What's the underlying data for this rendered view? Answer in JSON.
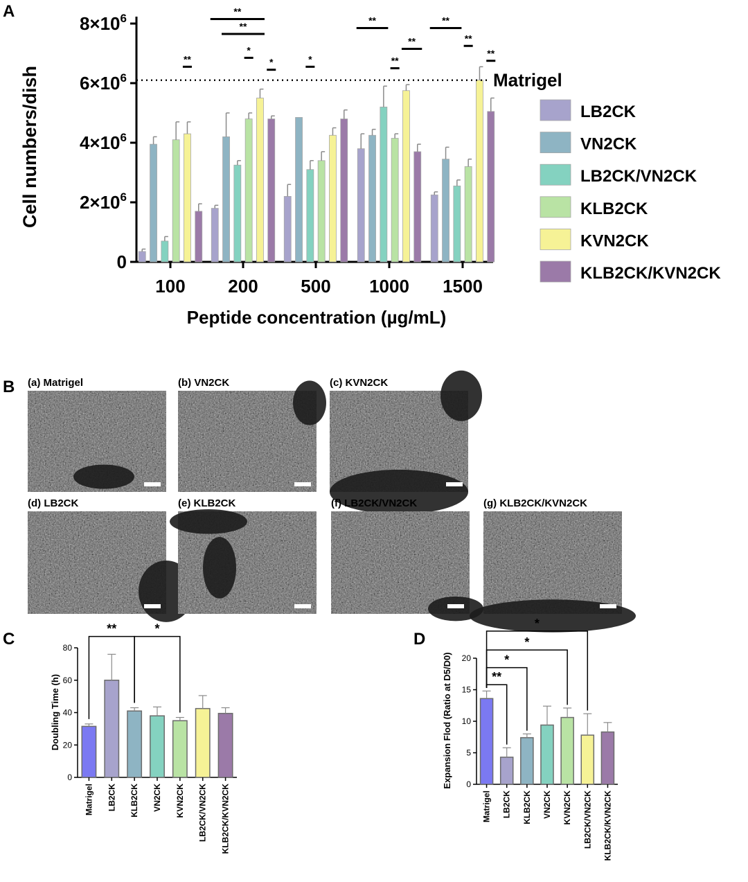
{
  "panels": {
    "a_letter": "A",
    "b_letter": "B",
    "c_letter": "C",
    "d_letter": "D"
  },
  "colors": {
    "LB2CK": "#a7a3cc",
    "VN2CK": "#8eb4c3",
    "LB2CK/VN2CK": "#84d2c0",
    "KLB2CK": "#b9e3a4",
    "KVN2CK": "#f6f296",
    "KLB2CK/KVN2CK": "#9b7aa8",
    "Matrigel": "#7b79f2"
  },
  "chart_data": [
    {
      "id": "A",
      "type": "bar",
      "title": "",
      "xlabel": "Peptide concentration (µg/mL)",
      "ylabel": "Cell numbers/dish",
      "ylim": [
        0,
        8000000
      ],
      "yticks": [
        {
          "value": 0,
          "mant": "0",
          "exp": ""
        },
        {
          "value": 2000000,
          "mant": "2×10",
          "exp": "6"
        },
        {
          "value": 4000000,
          "mant": "4×10",
          "exp": "6"
        },
        {
          "value": 6000000,
          "mant": "6×10",
          "exp": "6"
        },
        {
          "value": 8000000,
          "mant": "8×10",
          "exp": "6"
        }
      ],
      "categories": [
        "100",
        "200",
        "500",
        "1000",
        "1500"
      ],
      "series": [
        {
          "name": "LB2CK",
          "values": [
            350000,
            1800000,
            2200000,
            3800000,
            2250000
          ],
          "errors": [
            80000,
            100000,
            400000,
            500000,
            100000
          ]
        },
        {
          "name": "VN2CK",
          "values": [
            3950000,
            4200000,
            4850000,
            4250000,
            3450000
          ],
          "errors": [
            250000,
            800000,
            0,
            200000,
            400000
          ]
        },
        {
          "name": "LB2CK/VN2CK",
          "values": [
            700000,
            3250000,
            3100000,
            5200000,
            2550000
          ],
          "errors": [
            150000,
            150000,
            300000,
            700000,
            200000
          ]
        },
        {
          "name": "KLB2CK",
          "values": [
            4100000,
            4800000,
            3400000,
            4150000,
            3200000
          ],
          "errors": [
            600000,
            200000,
            300000,
            150000,
            250000
          ]
        },
        {
          "name": "KVN2CK",
          "values": [
            4300000,
            5500000,
            4250000,
            5750000,
            6100000
          ],
          "errors": [
            400000,
            300000,
            250000,
            200000,
            450000
          ]
        },
        {
          "name": "KLB2CK/KVN2CK",
          "values": [
            1700000,
            4800000,
            4800000,
            3700000,
            5050000
          ],
          "errors": [
            250000,
            100000,
            300000,
            250000,
            450000
          ]
        }
      ],
      "reference_line": {
        "label": "Matrigel",
        "value": 6100000
      },
      "legend": [
        "LB2CK",
        "VN2CK",
        "LB2CK/VN2CK",
        "KLB2CK",
        "KVN2CK",
        "KLB2CK/KVN2CK"
      ],
      "significance": [
        {
          "label": "**",
          "group": 0,
          "from": 4,
          "to": 5,
          "level": 6550000
        },
        {
          "label": "**",
          "group": 1,
          "from": 0,
          "to": 5,
          "level": 8150000
        },
        {
          "label": "**",
          "group": 1,
          "from": 1,
          "to": 5,
          "level": 7650000
        },
        {
          "label": "*",
          "group": 1,
          "from": 3,
          "to": 4,
          "level": 6850000
        },
        {
          "label": "*",
          "group": 1,
          "from": 5,
          "to": 6,
          "level": 6450000
        },
        {
          "label": "*",
          "group": 2,
          "from": 2,
          "to": 3,
          "level": 6550000
        },
        {
          "label": "**",
          "group": 3,
          "from": 0,
          "to": 3,
          "level": 7850000
        },
        {
          "label": "**",
          "group": 3,
          "from": 4,
          "to": 6,
          "level": 7150000
        },
        {
          "label": "**",
          "group": 3,
          "from": 3,
          "to": 4,
          "level": 6500000
        },
        {
          "label": "**",
          "group": 4,
          "from": 0,
          "to": 3,
          "level": 7850000
        },
        {
          "label": "**",
          "group": 4,
          "from": 3,
          "to": 4,
          "level": 7250000
        },
        {
          "label": "**",
          "group": 4,
          "from": 5,
          "to": 6,
          "level": 6750000
        }
      ]
    },
    {
      "id": "C",
      "type": "bar",
      "title": "",
      "xlabel": "",
      "ylabel": "Doubling Time (h)",
      "ylim": [
        0,
        80
      ],
      "yticks": [
        0,
        20,
        40,
        60,
        80
      ],
      "categories": [
        "Matrigel",
        "LB2CK",
        "KLB2CK",
        "VN2CK",
        "KVN2CK",
        "LB2CK/VN2CK",
        "KLB2CK/KVN2CK"
      ],
      "values": [
        31.5,
        60,
        41,
        38,
        35,
        42.5,
        39.5
      ],
      "errors": [
        1.5,
        16,
        2,
        5.5,
        2,
        8,
        3.5
      ],
      "significance": [
        {
          "label": "**",
          "from": 0,
          "to": 2,
          "level": 87
        },
        {
          "label": "*",
          "from": 2,
          "to": 4,
          "level": 87
        }
      ]
    },
    {
      "id": "D",
      "type": "bar",
      "title": "",
      "xlabel": "",
      "ylabel": "Expansion Flod (Ratio at D5/D0)",
      "ylim": [
        0,
        20
      ],
      "yticks": [
        0,
        5,
        10,
        15,
        20
      ],
      "categories": [
        "Matrigel",
        "LB2CK",
        "KLB2CK",
        "VN2CK",
        "KVN2CK",
        "LB2CK/VN2CK",
        "KLB2CK/KVN2CK"
      ],
      "values": [
        13.6,
        4.3,
        7.4,
        9.4,
        10.6,
        7.8,
        8.3
      ],
      "errors": [
        1.2,
        1.5,
        0.6,
        3.0,
        1.5,
        3.4,
        1.5
      ],
      "significance": [
        {
          "label": "**",
          "from": 0,
          "to": 1,
          "level": 15.8
        },
        {
          "label": "*",
          "from": 0,
          "to": 2,
          "level": 18.5
        },
        {
          "label": "*",
          "from": 0,
          "to": 4,
          "level": 21.3
        },
        {
          "label": "*",
          "from": 0,
          "to": 5,
          "level": 24.3
        }
      ]
    }
  ],
  "micrographs": [
    {
      "label": "(a) Matrigel"
    },
    {
      "label": "(b) VN2CK"
    },
    {
      "label": "(c) KVN2CK"
    },
    {
      "label": "(d) LB2CK"
    },
    {
      "label": "(e) KLB2CK"
    },
    {
      "label": "(f) LB2CK/VN2CK"
    },
    {
      "label": "(g) KLB2CK/KVN2CK"
    }
  ]
}
